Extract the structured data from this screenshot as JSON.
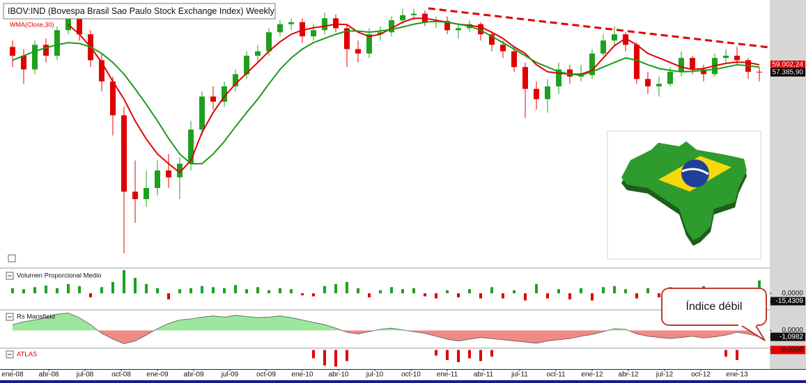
{
  "chart_data": [
    {
      "type": "candlestick",
      "title": "IBOV:IND (Bovespa Brasil Sao Paulo Stock Exchange Index) Weekly",
      "log_scale": true,
      "ylim": [
        28150,
        73350
      ],
      "xlim": [
        -1.125,
        67.9375
      ],
      "xticks": [
        {
          "value": 0,
          "label": "ene-08"
        },
        {
          "value": 3.25,
          "label": "abr-08"
        },
        {
          "value": 6.5,
          "label": "jul-08"
        },
        {
          "value": 9.75,
          "label": "oct-08"
        },
        {
          "value": 13,
          "label": "ene-09"
        },
        {
          "value": 16.25,
          "label": "abr-09"
        },
        {
          "value": 19.5,
          "label": "jul-09"
        },
        {
          "value": 22.75,
          "label": "oct-09"
        },
        {
          "value": 26,
          "label": "ene-10"
        },
        {
          "value": 29.25,
          "label": "abr-10"
        },
        {
          "value": 32.5,
          "label": "jul-10"
        },
        {
          "value": 35.75,
          "label": "oct-10"
        },
        {
          "value": 39,
          "label": "ene-11"
        },
        {
          "value": 42.25,
          "label": "abr-11"
        },
        {
          "value": 45.5,
          "label": "jul-11"
        },
        {
          "value": 48.75,
          "label": "oct-11"
        },
        {
          "value": 52,
          "label": "ene-12"
        },
        {
          "value": 55.25,
          "label": "abr-12"
        },
        {
          "value": 58.5,
          "label": "jul-12"
        },
        {
          "value": 61.75,
          "label": "oct-12"
        },
        {
          "value": 65,
          "label": "ene-13"
        }
      ],
      "up_color": "#1ea01e",
      "down_color": "#e00000",
      "open": [
        63000,
        61000,
        58000,
        63500,
        61000,
        67000,
        72500,
        66000,
        60000,
        55500,
        49000,
        37000,
        36000,
        37500,
        40000,
        39000,
        41000,
        46500,
        52500,
        51500,
        54500,
        57000,
        61000,
        62000,
        66500,
        68500,
        69000,
        65500,
        67000,
        70000,
        67500,
        62500,
        61500,
        66000,
        66500,
        69500,
        70800,
        71200,
        69000,
        69300,
        67000,
        67500,
        68500,
        66000,
        63500,
        62000,
        58500,
        54000,
        52000,
        54500,
        58000,
        56500,
        56800,
        61500,
        64500,
        66000,
        63500,
        56000,
        54500,
        55000,
        57500,
        60500,
        58000,
        57000,
        60500,
        61000,
        60000,
        57500
      ],
      "high": [
        64500,
        62500,
        64500,
        65000,
        68000,
        73500,
        73000,
        67000,
        61500,
        56500,
        50500,
        41500,
        40000,
        41500,
        42500,
        42000,
        48000,
        53500,
        54500,
        55500,
        58000,
        62000,
        63500,
        67500,
        69500,
        70000,
        70000,
        68500,
        71500,
        71000,
        68500,
        64500,
        67500,
        68000,
        70500,
        72500,
        72500,
        72000,
        70500,
        70500,
        68500,
        69500,
        69000,
        66500,
        64500,
        63000,
        59500,
        55500,
        56000,
        59500,
        59000,
        59000,
        62500,
        66000,
        68000,
        66500,
        64000,
        57500,
        56500,
        58500,
        62000,
        61000,
        59000,
        61500,
        62500,
        63000,
        60500,
        58500
      ],
      "low": [
        58500,
        55000,
        57000,
        59500,
        60000,
        66000,
        64500,
        58500,
        53500,
        45500,
        29500,
        33000,
        35000,
        36500,
        37500,
        36000,
        40000,
        45500,
        50000,
        50500,
        53500,
        56000,
        59500,
        61000,
        65500,
        67000,
        64000,
        64500,
        66000,
        66500,
        58500,
        59500,
        60500,
        64500,
        65500,
        68500,
        69500,
        68000,
        67500,
        66000,
        65000,
        66500,
        64500,
        62000,
        60500,
        57500,
        48500,
        50000,
        49500,
        53000,
        55000,
        55500,
        56000,
        61000,
        63500,
        62000,
        55000,
        53000,
        52500,
        54500,
        56500,
        57000,
        55500,
        56500,
        59500,
        59000,
        56000,
        55500
      ],
      "close": [
        61000,
        58000,
        63500,
        61000,
        67000,
        72500,
        66000,
        60000,
        55500,
        49000,
        37000,
        36000,
        37500,
        40000,
        39000,
        41000,
        46500,
        52500,
        51500,
        54500,
        57000,
        61000,
        62000,
        66500,
        68500,
        69000,
        65500,
        67000,
        70000,
        67500,
        62500,
        61500,
        66000,
        66500,
        69500,
        70800,
        71200,
        69000,
        69300,
        67000,
        67500,
        68500,
        66000,
        63500,
        62000,
        58500,
        54000,
        52000,
        54500,
        58000,
        56500,
        56800,
        61500,
        64500,
        66000,
        63500,
        56000,
        54500,
        55000,
        57500,
        60500,
        58000,
        57000,
        60500,
        61000,
        60000,
        57500,
        57385.9
      ],
      "series": [
        {
          "name": "WMA(Close,30)",
          "color": "#e00000",
          "values": [
            null,
            null,
            null,
            null,
            null,
            68400,
            66000,
            63000,
            59500,
            55500,
            52000,
            48000,
            44900,
            42500,
            41000,
            39700,
            41500,
            46000,
            49500,
            52500,
            55000,
            57200,
            59500,
            62000,
            64200,
            66000,
            67000,
            67600,
            68000,
            68500,
            68400,
            66500,
            65500,
            66000,
            67500,
            69000,
            70000,
            70000,
            69500,
            69000,
            68500,
            68200,
            67800,
            66500,
            65000,
            63000,
            61500,
            59000,
            57500,
            57200,
            57000,
            57000,
            57800,
            60500,
            63300,
            65000,
            63500,
            61500,
            60500,
            59500,
            58500,
            58000,
            58200,
            58800,
            59300,
            59600,
            59500,
            59002.24
          ]
        },
        {
          "color": "#1a9a1a",
          "values": [
            60000,
            61000,
            62000,
            62800,
            63500,
            64000,
            63800,
            63000,
            61500,
            59500,
            57000,
            54000,
            51000,
            48000,
            45000,
            42500,
            41000,
            41000,
            42500,
            44500,
            47000,
            49500,
            52000,
            55000,
            58000,
            60500,
            62500,
            64000,
            65000,
            66000,
            66800,
            66800,
            66500,
            66800,
            67200,
            67800,
            68500,
            69000,
            69200,
            69000,
            68500,
            68000,
            67000,
            65500,
            64000,
            62500,
            61000,
            59500,
            58500,
            57500,
            57000,
            56800,
            57500,
            58500,
            59500,
            60500,
            60000,
            59000,
            58200,
            57800,
            57500,
            57600,
            57800,
            58000,
            58500,
            59000,
            58800,
            58500
          ]
        }
      ],
      "trendline": {
        "x": [
          37.3,
          67.9
        ],
        "values": [
          72600,
          62900
        ],
        "color": "#e00000"
      },
      "price_labels": [
        {
          "value": 59002.24,
          "label": "59.002,24",
          "color": "#e00000"
        },
        {
          "value": 57385.9,
          "label": "57.385,90",
          "color": "#000000"
        }
      ]
    },
    {
      "type": "bar",
      "title": "Volumen Proporcional Medio",
      "ylim": [
        -31,
        45
      ],
      "yticks": [
        {
          "value": 0,
          "label": "0,0000"
        },
        {
          "value": -15.4309,
          "label": "-15,4309"
        }
      ],
      "positive_color": "#1ea01e",
      "negative_color": "#e00000",
      "values": [
        10,
        8,
        12,
        15,
        10,
        18,
        14,
        -8,
        12,
        22,
        45,
        30,
        18,
        10,
        -12,
        8,
        10,
        14,
        12,
        10,
        16,
        8,
        12,
        6,
        10,
        8,
        -4,
        -6,
        14,
        18,
        22,
        10,
        -8,
        6,
        12,
        8,
        10,
        -6,
        -10,
        6,
        -8,
        8,
        -10,
        12,
        -10,
        6,
        -14,
        18,
        -10,
        8,
        -12,
        10,
        -14,
        12,
        14,
        8,
        -10,
        10,
        -8,
        12,
        -10,
        8,
        14,
        -8,
        6,
        -10,
        8,
        25
      ]
    },
    {
      "type": "area",
      "title": "Rs Mansfield",
      "ylim": [
        -3.05,
        3.3
      ],
      "yticks": [
        {
          "value": 0,
          "label": "0,0000"
        },
        {
          "value": -1.0982,
          "label": "-1,0982"
        }
      ],
      "positive_color": "#9be79b",
      "negative_color": "#f08a84",
      "annotation": "Índice débil",
      "values": [
        1.0,
        1.5,
        1.8,
        2.2,
        2.8,
        3.0,
        2.2,
        1.0,
        -0.5,
        -1.5,
        -2.3,
        -1.8,
        -0.8,
        0.3,
        1.2,
        1.8,
        2.0,
        2.3,
        2.5,
        2.3,
        2.6,
        2.4,
        2.2,
        2.3,
        2.5,
        2.2,
        1.8,
        1.4,
        1.0,
        0.4,
        -0.3,
        -0.6,
        -0.2,
        0.2,
        0.4,
        0.1,
        -0.2,
        -0.5,
        -1.0,
        -1.5,
        -1.8,
        -1.5,
        -1.2,
        -1.4,
        -1.6,
        -1.8,
        -2.0,
        -2.2,
        -1.8,
        -1.6,
        -1.4,
        -1.0,
        -0.7,
        -0.2,
        0.3,
        0.2,
        -0.6,
        -1.0,
        -1.2,
        -1.4,
        -1.2,
        -1.0,
        -1.3,
        -1.1,
        -0.8,
        -0.3,
        -0.6,
        -1.0982
      ]
    },
    {
      "type": "bar",
      "title": "ATLAS",
      "ylim": [
        -3.2,
        0.2
      ],
      "yticks": [
        {
          "value": 0,
          "label": "0,0000"
        }
      ],
      "positive_color": "#1ea01e",
      "negative_color": "#e00000",
      "values": [
        0,
        0,
        0,
        0,
        0,
        0,
        0,
        0,
        0,
        0,
        0,
        0,
        0,
        0,
        0,
        0,
        0,
        0,
        0,
        0,
        0,
        0,
        0,
        0,
        0,
        0,
        0,
        -1.5,
        -2.8,
        -3.0,
        -2.0,
        0,
        0,
        0,
        0,
        0,
        0,
        0,
        -1.0,
        -1.8,
        -2.2,
        -1.5,
        -2.0,
        -1.2,
        0,
        0,
        0,
        0,
        0,
        0,
        0,
        0,
        0,
        0,
        0,
        0,
        0,
        0,
        0,
        0,
        0,
        0,
        0,
        0,
        -1.2,
        -1.8,
        0,
        0
      ]
    }
  ]
}
